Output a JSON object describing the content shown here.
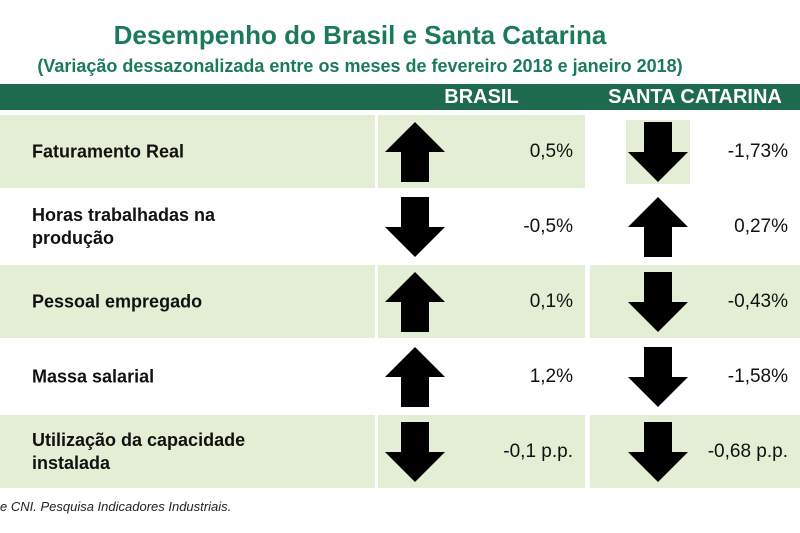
{
  "header": {
    "title": "Desempenho do Brasil e Santa Catarina",
    "subtitle": "(Variação dessazonalizada entre os meses de fevereiro 2018 e janeiro 2018)"
  },
  "table": {
    "columns": [
      "BRASIL",
      "SANTA CATARINA"
    ],
    "rows": [
      [
        "Faturamento Real",
        "0,5%",
        "-1,73%"
      ],
      [
        "Horas trabalhadas na produção",
        "-0,5%",
        "0,27%"
      ],
      [
        "Pessoal empregado",
        "0,1%",
        "-0,43%"
      ],
      [
        "Massa salarial",
        "1,2%",
        "-1,58%"
      ],
      [
        "Utilização da capacidade instalada",
        "-0,1 p.p.",
        "-0,68 p.p."
      ]
    ]
  },
  "footer": "e CNI. Pesquisa Indicadores Industriais."
}
